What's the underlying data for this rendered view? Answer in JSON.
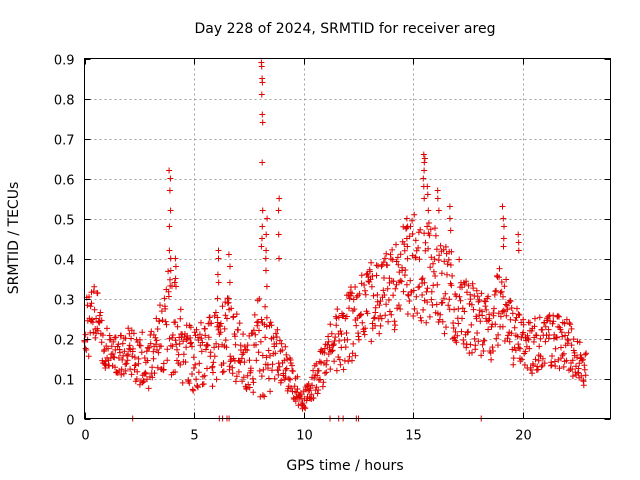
{
  "chart_data": {
    "type": "scatter",
    "title": "Day 228 of 2024, SRMTID for receiver areg",
    "xlabel": "GPS time / hours",
    "ylabel": "SRMTID / TECUs",
    "xlim": [
      0,
      24
    ],
    "ylim": [
      0,
      0.9
    ],
    "xticks": [
      0,
      5,
      10,
      15,
      20
    ],
    "yticks": [
      0,
      0.1,
      0.2,
      0.3,
      0.4,
      0.5,
      0.6,
      0.7,
      0.8,
      0.9
    ],
    "grid": true,
    "marker": "+",
    "color": "#e00000",
    "profile": {
      "x": [
        0.0,
        0.5,
        1.0,
        1.5,
        2.0,
        2.5,
        3.0,
        3.5,
        3.8,
        4.2,
        4.6,
        5.0,
        5.5,
        6.0,
        6.5,
        7.0,
        7.5,
        8.0,
        8.3,
        8.7,
        9.2,
        9.6,
        10.0,
        10.4,
        10.8,
        11.2,
        11.6,
        12.0,
        12.5,
        13.0,
        13.5,
        14.0,
        14.5,
        15.0,
        15.5,
        16.0,
        16.5,
        17.0,
        17.5,
        18.0,
        18.5,
        19.0,
        19.5,
        20.0,
        20.5,
        21.0,
        21.5,
        22.0,
        22.5,
        22.9
      ],
      "y": [
        0.22,
        0.25,
        0.17,
        0.16,
        0.17,
        0.15,
        0.14,
        0.2,
        0.25,
        0.22,
        0.16,
        0.15,
        0.16,
        0.18,
        0.22,
        0.17,
        0.14,
        0.18,
        0.2,
        0.15,
        0.12,
        0.08,
        0.05,
        0.08,
        0.13,
        0.17,
        0.2,
        0.22,
        0.26,
        0.29,
        0.3,
        0.32,
        0.36,
        0.38,
        0.38,
        0.35,
        0.32,
        0.3,
        0.26,
        0.23,
        0.24,
        0.3,
        0.22,
        0.19,
        0.18,
        0.19,
        0.2,
        0.18,
        0.15,
        0.12
      ],
      "spread": [
        0.06,
        0.06,
        0.04,
        0.04,
        0.04,
        0.05,
        0.05,
        0.07,
        0.1,
        0.08,
        0.06,
        0.06,
        0.06,
        0.07,
        0.08,
        0.06,
        0.05,
        0.1,
        0.1,
        0.06,
        0.04,
        0.03,
        0.02,
        0.03,
        0.04,
        0.05,
        0.06,
        0.07,
        0.07,
        0.07,
        0.08,
        0.08,
        0.09,
        0.1,
        0.1,
        0.09,
        0.08,
        0.08,
        0.07,
        0.06,
        0.07,
        0.08,
        0.06,
        0.05,
        0.05,
        0.05,
        0.05,
        0.05,
        0.04,
        0.03
      ]
    },
    "spikes": [
      {
        "x": 3.9,
        "y": [
          0.6,
          0.62,
          0.57,
          0.52,
          0.48,
          0.42,
          0.4,
          0.37
        ]
      },
      {
        "x": 4.15,
        "y": [
          0.4,
          0.38,
          0.35,
          0.33
        ]
      },
      {
        "x": 6.1,
        "y": [
          0.42,
          0.4,
          0.36,
          0.34,
          0.3
        ]
      },
      {
        "x": 6.6,
        "y": [
          0.41,
          0.38,
          0.34,
          0.3
        ]
      },
      {
        "x": 8.1,
        "y": [
          0.89,
          0.88,
          0.85,
          0.84,
          0.81,
          0.76,
          0.74,
          0.64,
          0.52,
          0.48,
          0.45,
          0.43
        ]
      },
      {
        "x": 8.3,
        "y": [
          0.5,
          0.46,
          0.42,
          0.4,
          0.37,
          0.33
        ]
      },
      {
        "x": 8.85,
        "y": [
          0.55,
          0.52,
          0.46,
          0.4
        ]
      },
      {
        "x": 15.5,
        "y": [
          0.66,
          0.65,
          0.64,
          0.62,
          0.6,
          0.58,
          0.55
        ]
      },
      {
        "x": 15.65,
        "y": [
          0.58,
          0.56,
          0.52,
          0.48
        ]
      },
      {
        "x": 14.75,
        "y": [
          0.5,
          0.48,
          0.45,
          0.43
        ]
      },
      {
        "x": 16.15,
        "y": [
          0.57,
          0.55,
          0.52
        ]
      },
      {
        "x": 16.7,
        "y": [
          0.53,
          0.5,
          0.47
        ]
      },
      {
        "x": 19.1,
        "y": [
          0.53,
          0.5,
          0.48,
          0.45,
          0.43
        ]
      },
      {
        "x": 19.8,
        "y": [
          0.46,
          0.44,
          0.42
        ]
      }
    ],
    "zero_markers": [
      2.2,
      6.15,
      6.3,
      6.5,
      6.6,
      11.2,
      11.6,
      11.8,
      12.4,
      12.5,
      18.1
    ]
  }
}
